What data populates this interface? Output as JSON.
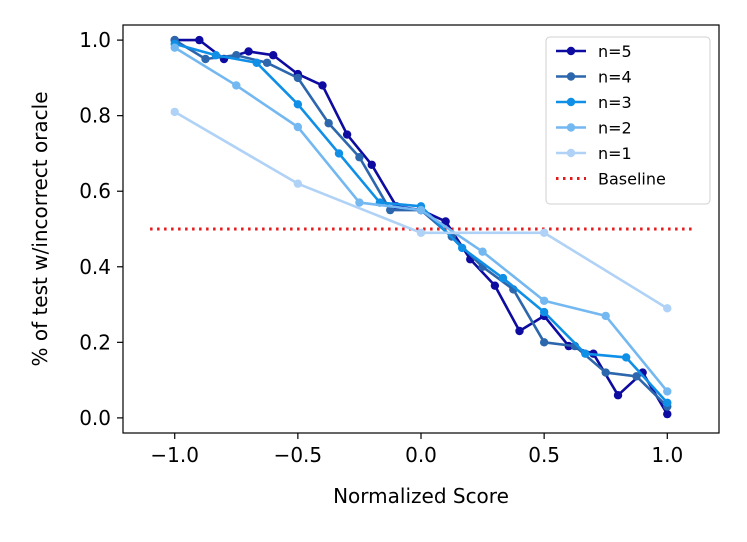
{
  "chart_data": {
    "type": "line",
    "title": "",
    "xlabel": "Normalized Score",
    "ylabel": "% of test w/incorrect oracle",
    "xlim": [
      -1.21,
      1.21
    ],
    "ylim": [
      -0.04,
      1.04
    ],
    "xticks": [
      -1.0,
      -0.5,
      0.0,
      0.5,
      1.0
    ],
    "xtick_labels": [
      "−1.0",
      "−0.5",
      "0.0",
      "0.5",
      "1.0"
    ],
    "yticks": [
      0.0,
      0.2,
      0.4,
      0.6,
      0.8,
      1.0
    ],
    "ytick_labels": [
      "0.0",
      "0.2",
      "0.4",
      "0.6",
      "0.8",
      "1.0"
    ],
    "legend_position": "top-right",
    "series": [
      {
        "name": "n=5",
        "color": "#0d0ba0",
        "x": [
          -1.0,
          -0.9,
          -0.8,
          -0.7,
          -0.6,
          -0.5,
          -0.4,
          -0.3,
          -0.2,
          -0.1,
          0.0,
          0.1,
          0.2,
          0.3,
          0.4,
          0.5,
          0.6,
          0.7,
          0.8,
          0.9,
          1.0
        ],
        "y": [
          1.0,
          1.0,
          0.95,
          0.97,
          0.96,
          0.91,
          0.88,
          0.75,
          0.67,
          0.56,
          0.55,
          0.52,
          0.42,
          0.35,
          0.23,
          0.27,
          0.19,
          0.17,
          0.06,
          0.12,
          0.01
        ]
      },
      {
        "name": "n=4",
        "color": "#2c66ac",
        "x": [
          -1.0,
          -0.875,
          -0.75,
          -0.625,
          -0.5,
          -0.375,
          -0.25,
          -0.125,
          0.0,
          0.125,
          0.25,
          0.375,
          0.5,
          0.625,
          0.75,
          0.875,
          1.0
        ],
        "y": [
          1.0,
          0.95,
          0.96,
          0.94,
          0.9,
          0.78,
          0.69,
          0.55,
          0.55,
          0.48,
          0.4,
          0.34,
          0.2,
          0.19,
          0.12,
          0.11,
          0.03
        ]
      },
      {
        "name": "n=3",
        "color": "#0f8fe6",
        "x": [
          -1.0,
          -0.833,
          -0.667,
          -0.5,
          -0.333,
          -0.167,
          0.0,
          0.167,
          0.333,
          0.5,
          0.667,
          0.833,
          1.0
        ],
        "y": [
          0.99,
          0.96,
          0.94,
          0.83,
          0.7,
          0.57,
          0.56,
          0.45,
          0.37,
          0.28,
          0.17,
          0.16,
          0.04
        ]
      },
      {
        "name": "n=2",
        "color": "#74b8f1",
        "x": [
          -1.0,
          -0.75,
          -0.5,
          -0.25,
          0.0,
          0.25,
          0.5,
          0.75,
          1.0
        ],
        "y": [
          0.98,
          0.88,
          0.77,
          0.57,
          0.55,
          0.44,
          0.31,
          0.27,
          0.07
        ]
      },
      {
        "name": "n=1",
        "color": "#afd2f6",
        "x": [
          -1.0,
          -0.5,
          0.0,
          0.5,
          1.0
        ],
        "y": [
          0.81,
          0.62,
          0.49,
          0.49,
          0.29
        ]
      }
    ],
    "baseline": {
      "name": "Baseline",
      "color": "#e31a1c",
      "y": 0.5,
      "x_range": [
        -1.1,
        1.1
      ]
    }
  }
}
